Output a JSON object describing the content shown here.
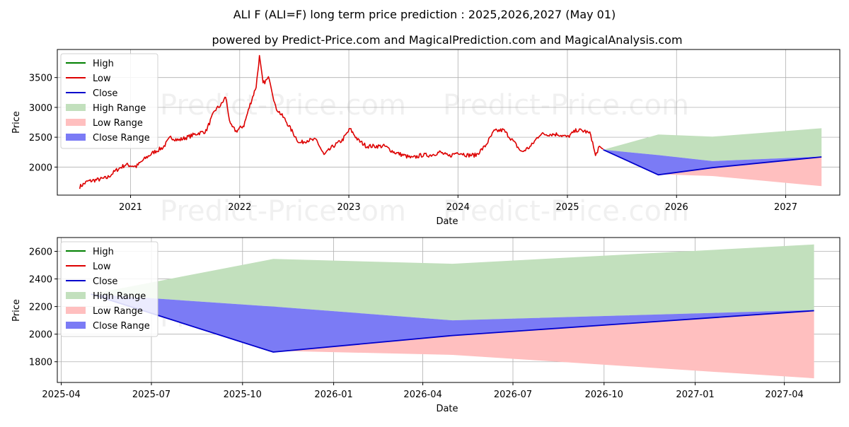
{
  "figure": {
    "title": "ALI F (ALI=F) long term price prediction : 2025,2026,2027 (May 01)",
    "subtitle": "powered by Predict-Price.com and MagicalPrediction.com and MagicalAnalysis.com",
    "watermark": "Predict-Price.com"
  },
  "legend": {
    "high": "High",
    "low": "Low",
    "close": "Close",
    "high_range": "High Range",
    "low_range": "Low Range",
    "close_range": "Close Range"
  },
  "colors": {
    "high": "#008000",
    "low": "#dd0000",
    "close": "#0000cc",
    "high_range": "#c2e0bd",
    "low_range": "#ffbfbf",
    "close_range": "#7b7bf5",
    "grid": "#b0b0b0"
  },
  "chart_data": [
    {
      "type": "line",
      "legend_position": "top-left",
      "grid": true,
      "xlabel": "Date",
      "ylabel": "Price",
      "xlim": [
        "2020-05-01",
        "2027-07-01"
      ],
      "ylim": [
        1530,
        3970
      ],
      "x_ticks": [
        "2021",
        "2022",
        "2023",
        "2024",
        "2025",
        "2026",
        "2027"
      ],
      "y_ticks": [
        "2000",
        "2500",
        "3000",
        "3500"
      ],
      "x_tick_dates": [
        "2021-01-01",
        "2022-01-01",
        "2023-01-01",
        "2024-01-01",
        "2025-01-01",
        "2026-01-01",
        "2027-01-01"
      ],
      "y_tick_values": [
        2000,
        2500,
        3000,
        3500
      ],
      "history": {
        "name": "Low",
        "points": [
          [
            "2020-07-15",
            1670
          ],
          [
            "2020-08-10",
            1760
          ],
          [
            "2020-09-15",
            1790
          ],
          [
            "2020-10-15",
            1820
          ],
          [
            "2020-11-15",
            1950
          ],
          [
            "2020-12-15",
            2040
          ],
          [
            "2021-01-20",
            2010
          ],
          [
            "2021-02-20",
            2150
          ],
          [
            "2021-03-20",
            2250
          ],
          [
            "2021-04-20",
            2330
          ],
          [
            "2021-05-15",
            2500
          ],
          [
            "2021-06-10",
            2450
          ],
          [
            "2021-07-10",
            2500
          ],
          [
            "2021-08-10",
            2560
          ],
          [
            "2021-09-10",
            2600
          ],
          [
            "2021-10-10",
            2950
          ],
          [
            "2021-11-01",
            3050
          ],
          [
            "2021-11-15",
            3180
          ],
          [
            "2021-12-01",
            2700
          ],
          [
            "2021-12-20",
            2600
          ],
          [
            "2022-01-15",
            2700
          ],
          [
            "2022-02-05",
            3050
          ],
          [
            "2022-02-25",
            3350
          ],
          [
            "2022-03-08",
            3850
          ],
          [
            "2022-03-20",
            3400
          ],
          [
            "2022-04-10",
            3500
          ],
          [
            "2022-05-01",
            3000
          ],
          [
            "2022-06-01",
            2800
          ],
          [
            "2022-06-25",
            2600
          ],
          [
            "2022-07-20",
            2400
          ],
          [
            "2022-08-15",
            2450
          ],
          [
            "2022-09-15",
            2450
          ],
          [
            "2022-10-10",
            2200
          ],
          [
            "2022-11-10",
            2350
          ],
          [
            "2022-12-10",
            2450
          ],
          [
            "2023-01-05",
            2640
          ],
          [
            "2023-02-01",
            2450
          ],
          [
            "2023-03-01",
            2350
          ],
          [
            "2023-04-01",
            2350
          ],
          [
            "2023-05-01",
            2350
          ],
          [
            "2023-06-01",
            2250
          ],
          [
            "2023-07-01",
            2200
          ],
          [
            "2023-08-01",
            2150
          ],
          [
            "2023-09-01",
            2200
          ],
          [
            "2023-10-01",
            2200
          ],
          [
            "2023-11-01",
            2250
          ],
          [
            "2023-12-01",
            2180
          ],
          [
            "2024-01-01",
            2250
          ],
          [
            "2024-02-01",
            2200
          ],
          [
            "2024-03-01",
            2200
          ],
          [
            "2024-04-01",
            2350
          ],
          [
            "2024-05-01",
            2600
          ],
          [
            "2024-06-01",
            2620
          ],
          [
            "2024-07-01",
            2450
          ],
          [
            "2024-08-01",
            2250
          ],
          [
            "2024-09-01",
            2350
          ],
          [
            "2024-10-01",
            2550
          ],
          [
            "2024-11-01",
            2550
          ],
          [
            "2024-12-01",
            2550
          ],
          [
            "2025-01-01",
            2500
          ],
          [
            "2025-02-01",
            2620
          ],
          [
            "2025-03-01",
            2600
          ],
          [
            "2025-03-20",
            2550
          ],
          [
            "2025-04-05",
            2180
          ],
          [
            "2025-04-15",
            2320
          ],
          [
            "2025-05-01",
            2300
          ]
        ]
      }
    },
    {
      "type": "area",
      "legend_position": "top-left",
      "grid": true,
      "xlabel": "Date",
      "ylabel": "Price",
      "xlim": [
        "2025-03-28",
        "2027-05-27"
      ],
      "ylim": [
        1650,
        2700
      ],
      "x_ticks": [
        "2025-04",
        "2025-07",
        "2025-10",
        "2026-01",
        "2026-04",
        "2026-07",
        "2026-10",
        "2027-01",
        "2027-04"
      ],
      "y_ticks": [
        "1800",
        "2000",
        "2200",
        "2400",
        "2600"
      ],
      "x_tick_dates": [
        "2025-04-01",
        "2025-07-01",
        "2025-10-01",
        "2026-01-01",
        "2026-04-01",
        "2026-07-01",
        "2026-10-01",
        "2027-01-01",
        "2027-04-01"
      ],
      "y_tick_values": [
        1800,
        2000,
        2200,
        2400,
        2600
      ]
    }
  ],
  "forecast": {
    "dates": [
      "2025-05-01",
      "2025-11-01",
      "2026-05-01",
      "2027-05-01"
    ],
    "close": [
      2290,
      1870,
      1990,
      2170
    ],
    "high_range_upper": [
      2290,
      2545,
      2510,
      2650
    ],
    "high_range_lower": [
      2290,
      2200,
      2100,
      2175
    ],
    "close_range_upper": [
      2290,
      2200,
      2100,
      2175
    ],
    "close_range_lower": [
      2290,
      1870,
      1990,
      2170
    ],
    "low_range_upper": [
      2290,
      1870,
      1990,
      2170
    ],
    "low_range_lower": [
      2290,
      1880,
      1850,
      1680
    ]
  }
}
